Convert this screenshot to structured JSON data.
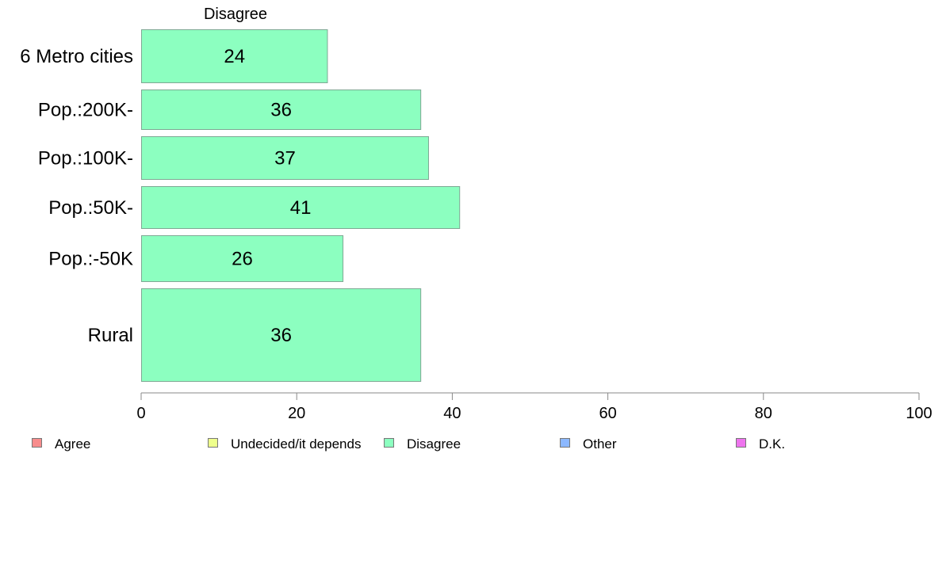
{
  "chart_data": {
    "type": "bar",
    "orientation": "horizontal",
    "title": "Disagree",
    "categories": [
      "6 Metro cities",
      "Pop.:200K-",
      "Pop.:100K-",
      "Pop.:50K-",
      "Pop.:-50K",
      "Rural"
    ],
    "series": [
      {
        "name": "Disagree",
        "values": [
          24,
          36,
          37,
          41,
          26,
          36
        ],
        "color": "#8cffc0"
      }
    ],
    "data_labels": [
      "24",
      "36",
      "37",
      "41",
      "26",
      "36"
    ],
    "xlim": [
      0,
      100
    ],
    "x_ticks": [
      "0",
      "20",
      "40",
      "60",
      "80",
      "100"
    ],
    "grid": false,
    "legend_position": "bottom",
    "legend": [
      {
        "label": "Agree",
        "color": "#f78c8c"
      },
      {
        "label": "Undecided/it depends",
        "color": "#eeff8c"
      },
      {
        "label": "Disagree",
        "color": "#8cffc0"
      },
      {
        "label": "Other",
        "color": "#8cb8ff"
      },
      {
        "label": "D.K.",
        "color": "#ee74ee"
      }
    ]
  }
}
